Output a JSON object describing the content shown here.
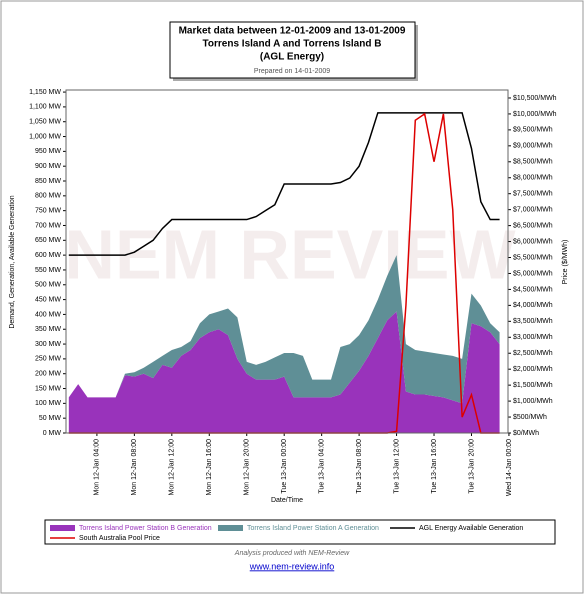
{
  "chart_data": {
    "type": "area-line",
    "title": "Market data between 12-01-2009 and 13-01-2009",
    "subtitle": "Torrens Island A and Torrens Island B",
    "subtitle2": "(AGL Energy)",
    "prepared": "Prepared on 14-01-2009",
    "watermark": "NEM REVIEW",
    "x_label": "Date/Time",
    "y_label": "Demand, Generation, Available Generation",
    "y2_label": "Price ($/MWh)",
    "footer": "Analysis produced with NEM-Review",
    "link": "www.nem-review.info",
    "x": [
      1,
      2,
      3,
      4,
      5,
      6,
      7,
      8,
      9,
      10,
      11,
      12,
      13,
      14,
      15,
      16,
      17,
      18,
      19,
      20,
      21,
      22,
      23,
      24,
      25,
      26,
      27,
      28,
      29,
      30,
      31,
      32,
      33,
      34,
      35,
      36,
      37,
      38,
      39,
      40,
      41,
      42,
      43,
      44,
      45,
      46,
      47
    ],
    "xlim": [
      0.7,
      47.9
    ],
    "xticks": [
      {
        "value": 4,
        "label": "Mon 12-Jan 04:00"
      },
      {
        "value": 8,
        "label": "Mon 12-Jan 08:00"
      },
      {
        "value": 12,
        "label": "Mon 12-Jan 12:00"
      },
      {
        "value": 16,
        "label": "Mon 12-Jan 16:00"
      },
      {
        "value": 20,
        "label": "Mon 12-Jan 20:00"
      },
      {
        "value": 24,
        "label": "Tue 13-Jan 00:00"
      },
      {
        "value": 28,
        "label": "Tue 13-Jan 04:00"
      },
      {
        "value": 32,
        "label": "Tue 13-Jan 08:00"
      },
      {
        "value": 36,
        "label": "Tue 13-Jan 12:00"
      },
      {
        "value": 40,
        "label": "Tue 13-Jan 16:00"
      },
      {
        "value": 44,
        "label": "Tue 13-Jan 20:00"
      },
      {
        "value": 48,
        "label": "Wed 14-Jan 00:00"
      }
    ],
    "ylim": [
      0,
      1157
    ],
    "yticks": [
      {
        "value": 0,
        "label": "0 MW"
      },
      {
        "value": 50,
        "label": "50 MW"
      },
      {
        "value": 100,
        "label": "100 MW"
      },
      {
        "value": 150,
        "label": "150 MW"
      },
      {
        "value": 200,
        "label": "200 MW"
      },
      {
        "value": 250,
        "label": "250 MW"
      },
      {
        "value": 300,
        "label": "300 MW"
      },
      {
        "value": 350,
        "label": "350 MW"
      },
      {
        "value": 400,
        "label": "400 MW"
      },
      {
        "value": 450,
        "label": "450 MW"
      },
      {
        "value": 500,
        "label": "500 MW"
      },
      {
        "value": 550,
        "label": "550 MW"
      },
      {
        "value": 600,
        "label": "600 MW"
      },
      {
        "value": 650,
        "label": "650 MW"
      },
      {
        "value": 700,
        "label": "700 MW"
      },
      {
        "value": 750,
        "label": "750 MW"
      },
      {
        "value": 800,
        "label": "800 MW"
      },
      {
        "value": 850,
        "label": "850 MW"
      },
      {
        "value": 900,
        "label": "900 MW"
      },
      {
        "value": 950,
        "label": "950 MW"
      },
      {
        "value": 1000,
        "label": "1,000 MW"
      },
      {
        "value": 1050,
        "label": "1,050 MW"
      },
      {
        "value": 1100,
        "label": "1,100 MW"
      },
      {
        "value": 1150,
        "label": "1,150 MW"
      }
    ],
    "y2lim": [
      0,
      10750
    ],
    "y2ticks": [
      {
        "value": 0,
        "label": "$0/MWh"
      },
      {
        "value": 500,
        "label": "$500/MWh"
      },
      {
        "value": 1000,
        "label": "$1,000/MWh"
      },
      {
        "value": 1500,
        "label": "$1,500/MWh"
      },
      {
        "value": 2000,
        "label": "$2,000/MWh"
      },
      {
        "value": 2500,
        "label": "$2,500/MWh"
      },
      {
        "value": 3000,
        "label": "$3,000/MWh"
      },
      {
        "value": 3500,
        "label": "$3,500/MWh"
      },
      {
        "value": 4000,
        "label": "$4,000/MWh"
      },
      {
        "value": 4500,
        "label": "$4,500/MWh"
      },
      {
        "value": 5000,
        "label": "$5,000/MWh"
      },
      {
        "value": 5500,
        "label": "$5,500/MWh"
      },
      {
        "value": 6000,
        "label": "$6,000/MWh"
      },
      {
        "value": 6500,
        "label": "$6,500/MWh"
      },
      {
        "value": 7000,
        "label": "$7,000/MWh"
      },
      {
        "value": 7500,
        "label": "$7,500/MWh"
      },
      {
        "value": 8000,
        "label": "$8,000/MWh"
      },
      {
        "value": 8500,
        "label": "$8,500/MWh"
      },
      {
        "value": 9000,
        "label": "$9,000/MWh"
      },
      {
        "value": 9500,
        "label": "$9,500/MWh"
      },
      {
        "value": 10000,
        "label": "$10,000/MWh"
      },
      {
        "value": 10500,
        "label": "$10,500/MWh"
      }
    ],
    "series": [
      {
        "name": "Torrens Island Power Station B Generation",
        "kind": "area",
        "color": "#9933bb",
        "values": [
          120,
          165,
          120,
          120,
          120,
          120,
          195,
          190,
          200,
          185,
          230,
          220,
          260,
          280,
          320,
          340,
          350,
          330,
          250,
          200,
          180,
          180,
          180,
          190,
          120,
          120,
          120,
          120,
          120,
          130,
          170,
          210,
          260,
          320,
          380,
          410,
          140,
          130,
          130,
          125,
          120,
          110,
          100,
          370,
          360,
          340,
          300
        ]
      },
      {
        "name": "Torrens Island Power Station A Generation",
        "kind": "area",
        "color": "#5f8f96",
        "values": [
          0,
          0,
          0,
          0,
          0,
          0,
          5,
          15,
          20,
          55,
          30,
          60,
          30,
          30,
          50,
          60,
          60,
          90,
          140,
          40,
          50,
          60,
          75,
          80,
          150,
          140,
          60,
          60,
          60,
          160,
          130,
          120,
          120,
          130,
          150,
          190,
          160,
          150,
          145,
          145,
          145,
          150,
          150,
          100,
          70,
          30,
          40
        ]
      },
      {
        "name": "AGL Energy Available Generation",
        "kind": "line",
        "color": "#000000",
        "values": [
          600,
          600,
          600,
          600,
          600,
          600,
          600,
          610,
          630,
          650,
          690,
          720,
          720,
          720,
          720,
          720,
          720,
          720,
          720,
          720,
          730,
          750,
          770,
          840,
          840,
          840,
          840,
          840,
          840,
          845,
          860,
          900,
          980,
          1080,
          1080,
          1080,
          1080,
          1080,
          1080,
          1080,
          1080,
          1080,
          1080,
          960,
          780,
          720,
          720
        ]
      },
      {
        "name": "South Australia Pool Price",
        "kind": "line",
        "axis": "y2",
        "color": "#dd0000",
        "values": [
          0,
          0,
          0,
          0,
          0,
          0,
          0,
          0,
          0,
          0,
          0,
          0,
          0,
          0,
          0,
          0,
          0,
          0,
          0,
          0,
          0,
          0,
          0,
          0,
          0,
          0,
          0,
          0,
          0,
          0,
          0,
          0,
          0,
          0,
          0,
          50,
          4000,
          9800,
          10000,
          8500,
          10000,
          7000,
          500,
          1200,
          0,
          0,
          0
        ]
      }
    ]
  }
}
